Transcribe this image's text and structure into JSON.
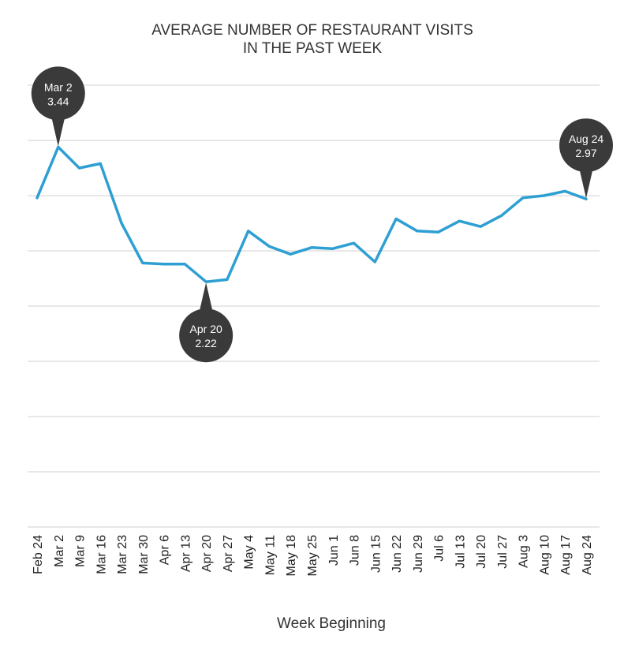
{
  "chart_data": {
    "type": "line",
    "title_lines": [
      "AVERAGE NUMBER OF RESTAURANT VISITS",
      "IN THE PAST WEEK"
    ],
    "xlabel": "Week Beginning",
    "ylabel": "",
    "ylim": [
      0,
      4
    ],
    "grid": true,
    "y_axis_labels_shown": false,
    "line_color": "#2E9FD2",
    "callout_color": "#3A3A3A",
    "categories": [
      "Feb 24",
      "Mar 2",
      "Mar 9",
      "Mar 16",
      "Mar 23",
      "Mar 30",
      "Apr 6",
      "Apr 13",
      "Apr 20",
      "Apr 27",
      "May 4",
      "May 11",
      "May 18",
      "May 25",
      "Jun 1",
      "Jun 8",
      "Jun 15",
      "Jun 22",
      "Jun 29",
      "Jul 6",
      "Jul 13",
      "Jul 20",
      "Jul 27",
      "Aug 3",
      "Aug 10",
      "Aug 17",
      "Aug 24"
    ],
    "series": [
      {
        "values": [
          2.98,
          3.44,
          3.25,
          3.29,
          2.75,
          2.39,
          2.38,
          2.38,
          2.22,
          2.24,
          2.68,
          2.54,
          2.47,
          2.53,
          2.52,
          2.57,
          2.4,
          2.79,
          2.68,
          2.67,
          2.77,
          2.72,
          2.82,
          2.98,
          3.0,
          3.04,
          2.97
        ]
      }
    ],
    "annotations": [
      {
        "category": "Mar 2",
        "label": "Mar 2",
        "value_text": "3.44",
        "placement": "above"
      },
      {
        "category": "Apr 20",
        "label": "Apr 20",
        "value_text": "2.22",
        "placement": "below"
      },
      {
        "category": "Aug 24",
        "label": "Aug 24",
        "value_text": "2.97",
        "placement": "above"
      }
    ]
  }
}
